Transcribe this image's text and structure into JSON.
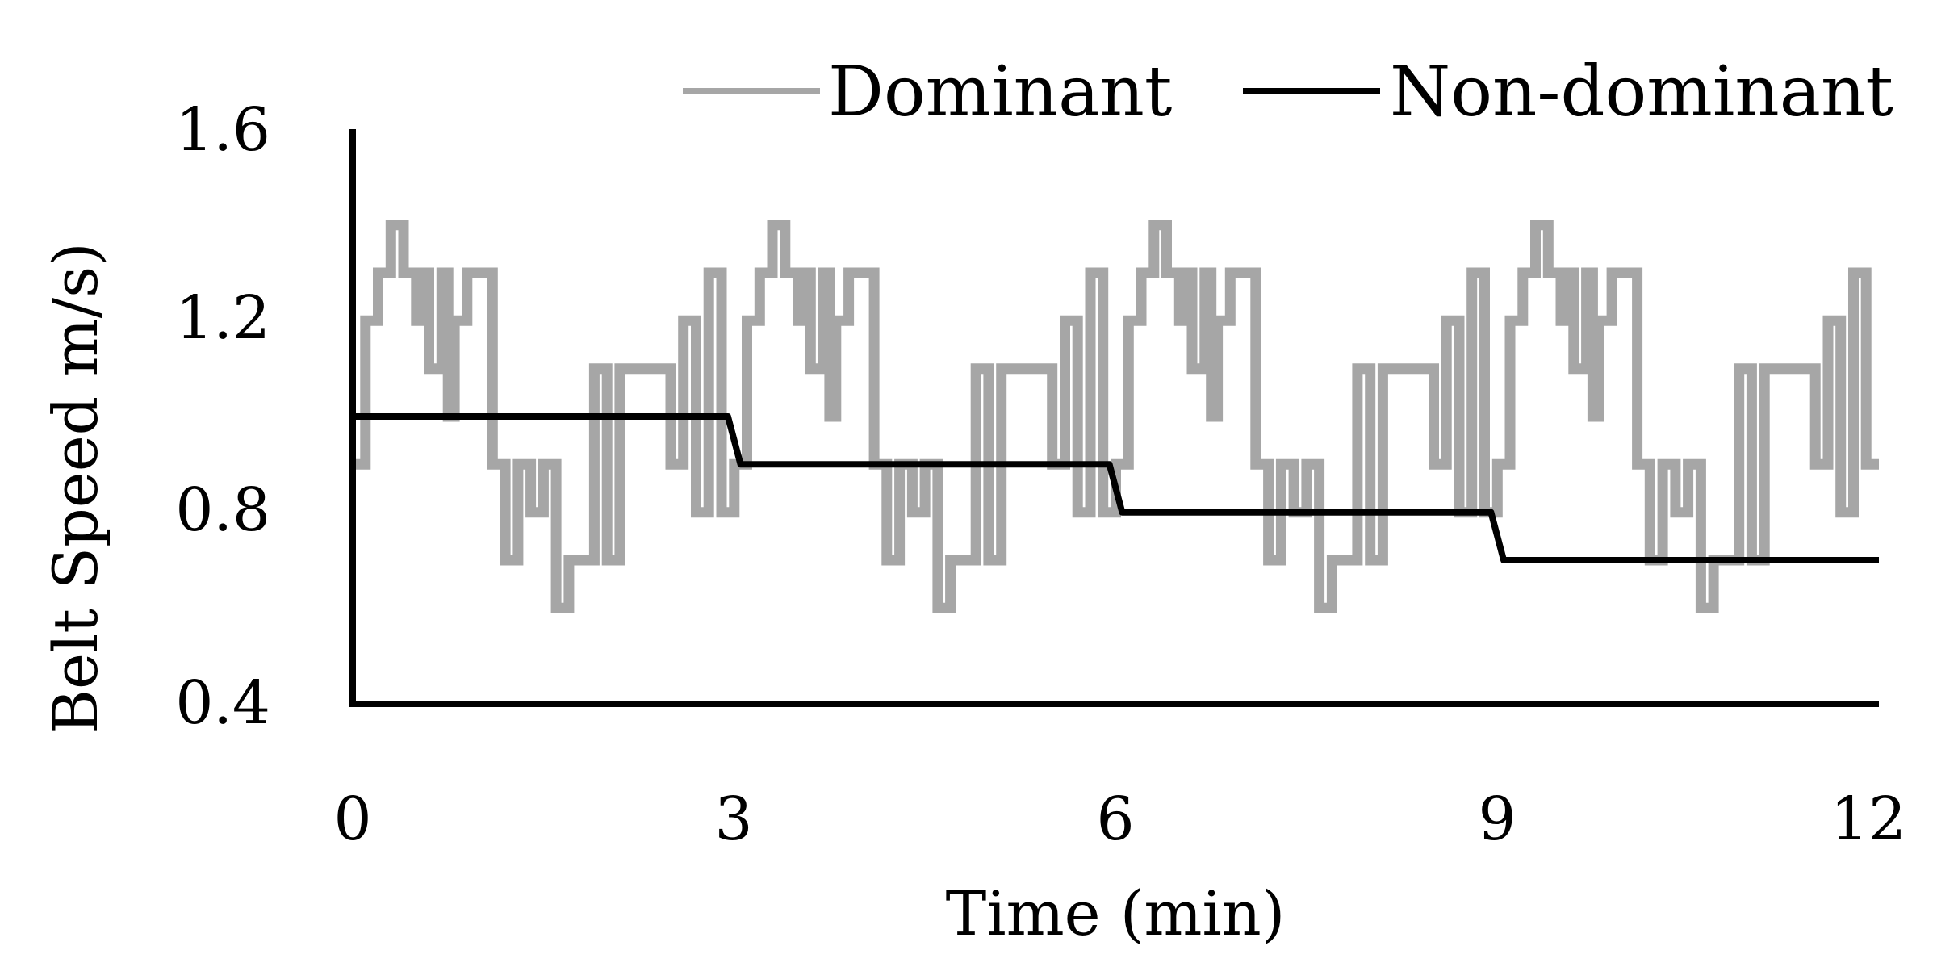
{
  "chart_data": {
    "type": "line",
    "title": "",
    "xlabel": "Time (min)",
    "ylabel": "Belt Speed  m/s)",
    "xlim": [
      0,
      12
    ],
    "ylim": [
      0.4,
      1.6
    ],
    "x_ticks": [
      "0",
      "3",
      "6",
      "9",
      "12"
    ],
    "y_ticks": [
      "0.4",
      "0.8",
      "1.2",
      "1.6"
    ],
    "x_tick_values": [
      0,
      3,
      6,
      9,
      12
    ],
    "y_tick_values": [
      0.4,
      0.8,
      1.2,
      1.6
    ],
    "grid": false,
    "legend": {
      "position": "top-right"
    },
    "series": [
      {
        "name": "Dominant",
        "color": "#a6a6a6",
        "step": true,
        "x": [
          0.0,
          0.1,
          0.2,
          0.3,
          0.4,
          0.5,
          0.55,
          0.6,
          0.7,
          0.75,
          0.8,
          0.9,
          1.1,
          1.2,
          1.3,
          1.4,
          1.5,
          1.6,
          1.7,
          1.9,
          2.0,
          2.1,
          2.3,
          2.5,
          2.6,
          2.7,
          2.8,
          2.9,
          3.0,
          3.1,
          3.2,
          3.3,
          3.4,
          3.5,
          3.55,
          3.6,
          3.7,
          3.75,
          3.8,
          3.9,
          4.1,
          4.2,
          4.3,
          4.4,
          4.5,
          4.6,
          4.7,
          4.9,
          5.0,
          5.1,
          5.3,
          5.5,
          5.6,
          5.7,
          5.8,
          5.9,
          6.0,
          6.1,
          6.2,
          6.3,
          6.4,
          6.5,
          6.55,
          6.6,
          6.7,
          6.75,
          6.8,
          6.9,
          7.1,
          7.2,
          7.3,
          7.4,
          7.5,
          7.6,
          7.7,
          7.9,
          8.0,
          8.1,
          8.3,
          8.5,
          8.6,
          8.7,
          8.8,
          8.9,
          9.0,
          9.1,
          9.2,
          9.3,
          9.4,
          9.5,
          9.55,
          9.6,
          9.7,
          9.75,
          9.8,
          9.9,
          10.1,
          10.2,
          10.3,
          10.4,
          10.5,
          10.6,
          10.7,
          10.9,
          11.0,
          11.1,
          11.3,
          11.5,
          11.6,
          11.7,
          11.8,
          11.9,
          12.0
        ],
        "y": [
          0.9,
          1.2,
          1.3,
          1.4,
          1.3,
          1.2,
          1.3,
          1.1,
          1.3,
          1.0,
          1.2,
          1.3,
          0.9,
          0.7,
          0.9,
          0.8,
          0.9,
          0.6,
          0.7,
          1.1,
          0.7,
          1.1,
          1.1,
          0.9,
          1.2,
          0.8,
          1.3,
          0.8,
          0.9,
          1.2,
          1.3,
          1.4,
          1.3,
          1.2,
          1.3,
          1.1,
          1.3,
          1.0,
          1.2,
          1.3,
          0.9,
          0.7,
          0.9,
          0.8,
          0.9,
          0.6,
          0.7,
          1.1,
          0.7,
          1.1,
          1.1,
          0.9,
          1.2,
          0.8,
          1.3,
          0.8,
          0.9,
          1.2,
          1.3,
          1.4,
          1.3,
          1.2,
          1.3,
          1.1,
          1.3,
          1.0,
          1.2,
          1.3,
          0.9,
          0.7,
          0.9,
          0.8,
          0.9,
          0.6,
          0.7,
          1.1,
          0.7,
          1.1,
          1.1,
          0.9,
          1.2,
          0.8,
          1.3,
          0.8,
          0.9,
          1.2,
          1.3,
          1.4,
          1.3,
          1.2,
          1.3,
          1.1,
          1.3,
          1.0,
          1.2,
          1.3,
          0.9,
          0.7,
          0.9,
          0.8,
          0.9,
          0.6,
          0.7,
          1.1,
          0.7,
          1.1,
          1.1,
          0.9,
          1.2,
          0.8,
          1.3,
          0.9,
          0.9
        ]
      },
      {
        "name": "Non-dominant",
        "color": "#000000",
        "step": false,
        "x": [
          0,
          2.95,
          3.05,
          5.95,
          6.05,
          8.95,
          9.05,
          12
        ],
        "y": [
          1.0,
          1.0,
          0.9,
          0.9,
          0.8,
          0.8,
          0.7,
          0.7
        ]
      }
    ]
  }
}
